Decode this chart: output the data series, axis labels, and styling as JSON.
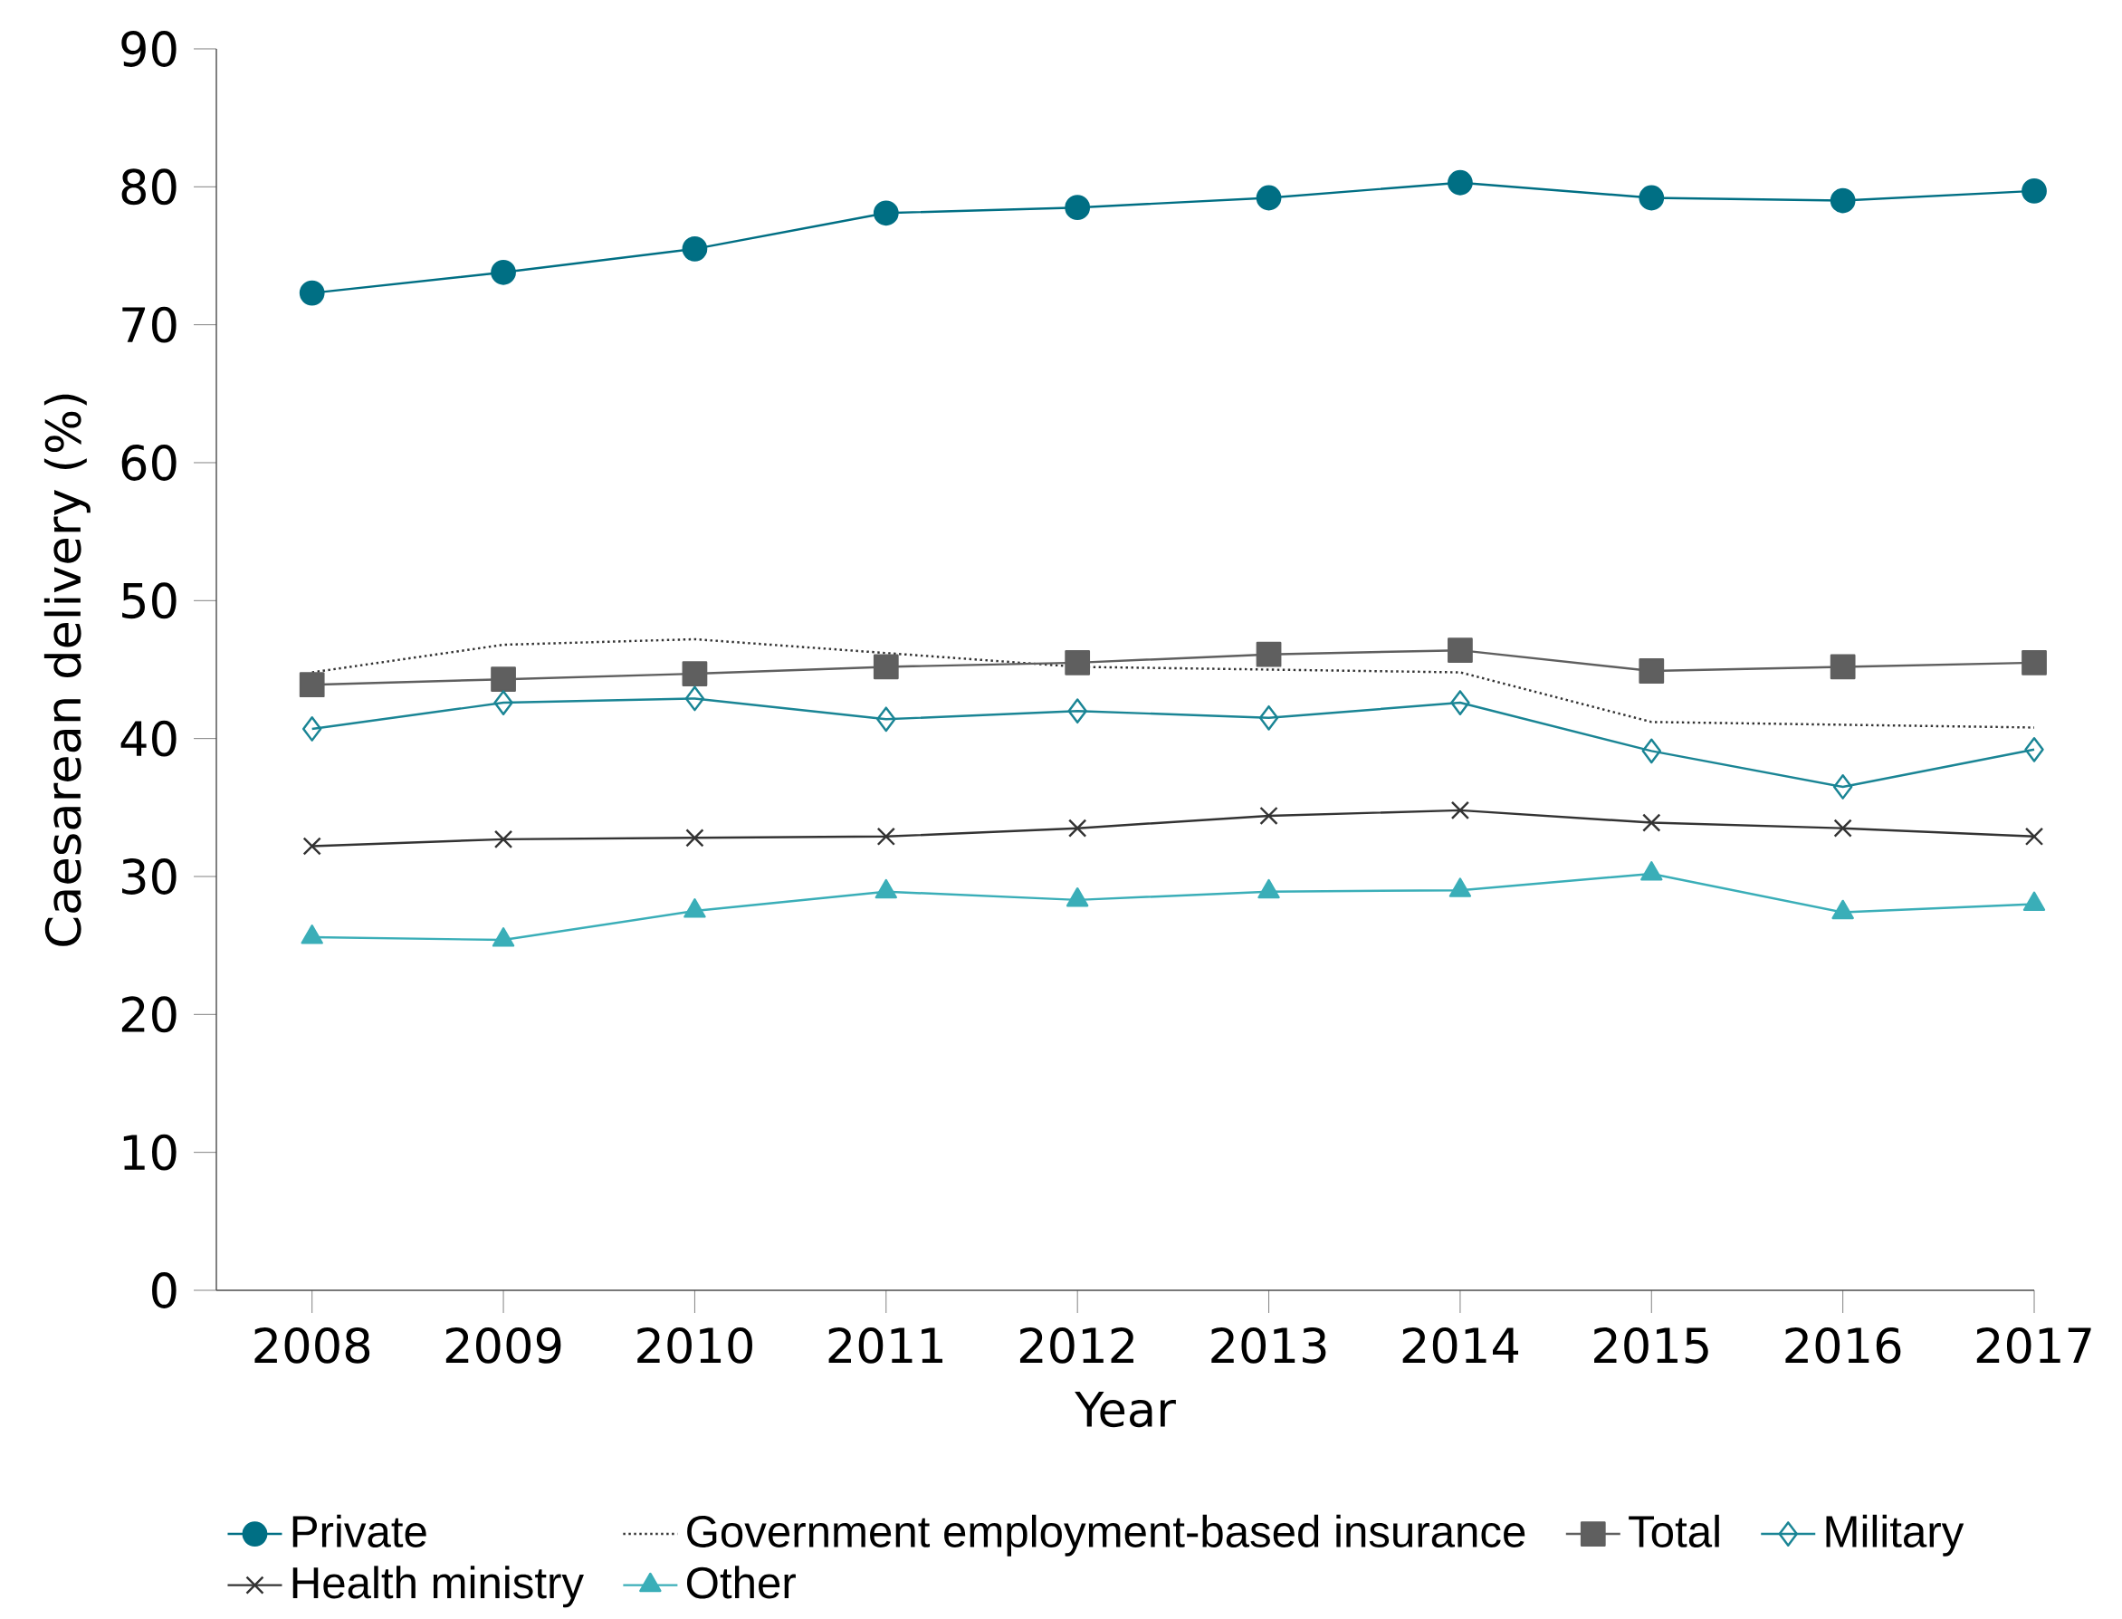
{
  "chart_data": {
    "type": "line",
    "xlabel": "Year",
    "ylabel": "Caesarean delivery (%)",
    "x": [
      2008,
      2009,
      2010,
      2011,
      2012,
      2013,
      2014,
      2015,
      2016,
      2017
    ],
    "xlim": [
      2007.5,
      2017
    ],
    "xticks": [
      2008,
      2009,
      2010,
      2011,
      2012,
      2013,
      2014,
      2015,
      2016,
      2017
    ],
    "ylim": [
      0,
      90
    ],
    "yticks": [
      0,
      10,
      20,
      30,
      40,
      50,
      60,
      70,
      80,
      90
    ],
    "legend": "bottom",
    "series": [
      {
        "name": "Private",
        "color": "#006f84",
        "marker": "circle",
        "line_style": "solid",
        "values": [
          72.3,
          73.8,
          75.5,
          78.1,
          78.5,
          79.2,
          80.3,
          79.2,
          79.0,
          79.7
        ]
      },
      {
        "name": "Government employment-based insurance",
        "color": "#333333",
        "marker": "none",
        "line_style": "dotted",
        "values": [
          44.8,
          46.8,
          47.2,
          46.2,
          45.2,
          45.0,
          44.8,
          41.2,
          41.0,
          40.8
        ]
      },
      {
        "name": "Total",
        "color": "#5f5f5f",
        "marker": "square",
        "line_style": "solid",
        "values": [
          43.9,
          44.3,
          44.7,
          45.2,
          45.5,
          46.1,
          46.4,
          44.9,
          45.2,
          45.5
        ]
      },
      {
        "name": "Military",
        "color": "#1a8595",
        "marker": "diamond",
        "line_style": "solid",
        "values": [
          40.7,
          42.6,
          42.9,
          41.4,
          42.0,
          41.5,
          42.6,
          39.1,
          36.5,
          39.2
        ]
      },
      {
        "name": "Health ministry",
        "color": "#333333",
        "marker": "cross",
        "line_style": "solid",
        "values": [
          32.2,
          32.7,
          32.8,
          32.9,
          33.5,
          34.4,
          34.8,
          33.9,
          33.5,
          32.9
        ]
      },
      {
        "name": "Other",
        "color": "#3aaeb8",
        "marker": "triangle",
        "line_style": "solid",
        "values": [
          25.6,
          25.4,
          27.5,
          28.9,
          28.3,
          28.9,
          29.0,
          30.2,
          27.4,
          28.0
        ]
      }
    ]
  }
}
